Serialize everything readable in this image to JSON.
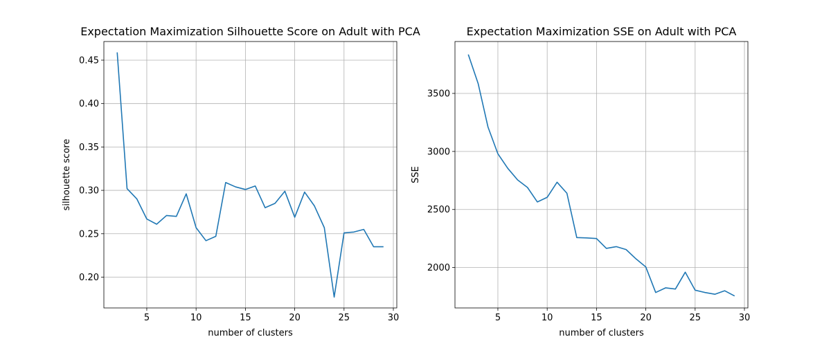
{
  "chart_data": [
    {
      "type": "line",
      "title": "Expectation Maximization Silhouette Score on Adult with PCA",
      "xlabel": "number of clusters",
      "ylabel": "silhouette score",
      "xlim": [
        0.65,
        30.35
      ],
      "ylim": [
        0.1645,
        0.4715
      ],
      "xticks": [
        5,
        10,
        15,
        20,
        25,
        30
      ],
      "yticks": [
        0.2,
        0.25,
        0.3,
        0.35,
        0.4,
        0.45
      ],
      "ytick_decimals": 2,
      "grid": true,
      "color": "#1f77b4",
      "x": [
        2,
        3,
        4,
        5,
        6,
        7,
        8,
        9,
        10,
        11,
        12,
        13,
        14,
        15,
        16,
        17,
        18,
        19,
        20,
        21,
        22,
        23,
        24,
        25,
        26,
        27,
        28,
        29
      ],
      "series": [
        {
          "values": [
            0.459,
            0.302,
            0.29,
            0.267,
            0.261,
            0.271,
            0.27,
            0.296,
            0.257,
            0.242,
            0.247,
            0.309,
            0.304,
            0.301,
            0.305,
            0.28,
            0.285,
            0.299,
            0.269,
            0.298,
            0.282,
            0.257,
            0.177,
            0.251,
            0.252,
            0.255,
            0.235,
            0.235
          ]
        }
      ]
    },
    {
      "type": "line",
      "title": "Expectation Maximization SSE on Adult with PCA",
      "xlabel": "number of clusters",
      "ylabel": "SSE",
      "xlim": [
        0.65,
        30.35
      ],
      "ylim": [
        1652,
        3947
      ],
      "xticks": [
        5,
        10,
        15,
        20,
        25,
        30
      ],
      "yticks": [
        2000,
        2500,
        3000,
        3500
      ],
      "ytick_decimals": 0,
      "grid": true,
      "color": "#1f77b4",
      "x": [
        2,
        3,
        4,
        5,
        6,
        7,
        8,
        9,
        10,
        11,
        12,
        13,
        14,
        15,
        16,
        17,
        18,
        19,
        20,
        21,
        22,
        23,
        24,
        25,
        26,
        27,
        28,
        29
      ],
      "series": [
        {
          "values": [
            3835,
            3585,
            3210,
            2980,
            2855,
            2755,
            2690,
            2565,
            2605,
            2735,
            2640,
            2258,
            2255,
            2250,
            2165,
            2180,
            2155,
            2075,
            2005,
            1785,
            1825,
            1815,
            1960,
            1805,
            1785,
            1770,
            1800,
            1755
          ]
        }
      ]
    }
  ]
}
